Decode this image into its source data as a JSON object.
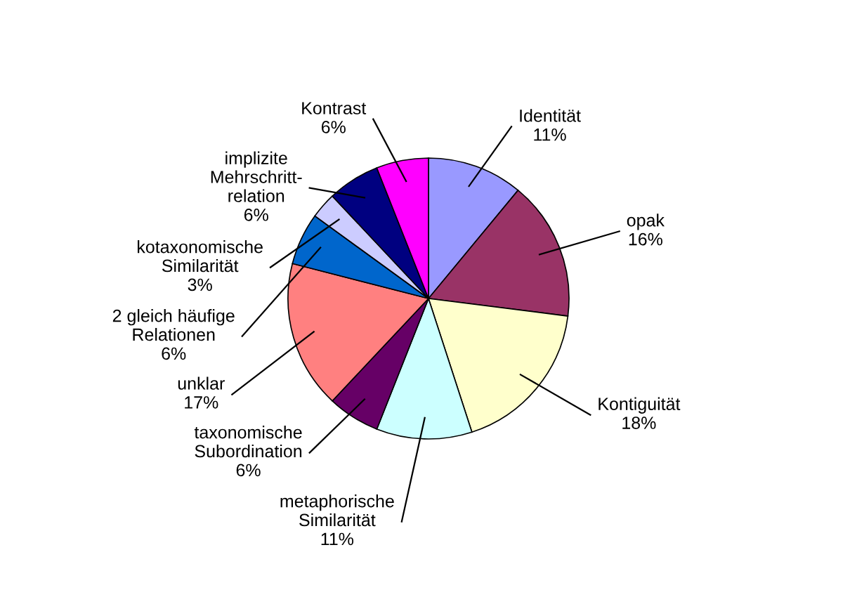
{
  "chart_data": {
    "type": "pie",
    "categories": [
      "Identität",
      "opak",
      "Kontiguität",
      "metaphorische Similarität",
      "taxonomische Subordination",
      "unklar",
      "2 gleich häufige Relationen",
      "kotaxonomische Similarität",
      "implizite Mehrschritt-relation",
      "Kontrast"
    ],
    "values": [
      11,
      16,
      18,
      11,
      6,
      17,
      6,
      3,
      6,
      6
    ],
    "value_labels": [
      "11%",
      "16%",
      "18%",
      "11%",
      "6%",
      "17%",
      "6%",
      "3%",
      "6%",
      "6%"
    ],
    "colors": [
      "#9999ff",
      "#993366",
      "#ffffcc",
      "#ccffff",
      "#660066",
      "#ff8080",
      "#0066cc",
      "#ccccff",
      "#000080",
      "#ff00ff"
    ]
  }
}
